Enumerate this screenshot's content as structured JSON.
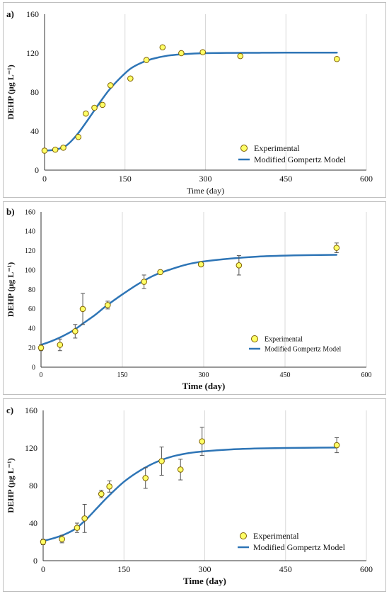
{
  "colors": {
    "curve": "#2e75b6",
    "marker_fill": "#ffff66",
    "marker_stroke": "#7f6000",
    "grid": "#d9d9d9"
  },
  "chart_data": [
    {
      "type": "scatter",
      "panel_label": "a)",
      "xlabel": "Time (day)",
      "ylabel": "DEHP (μg L⁻¹)",
      "xlim": [
        0,
        600
      ],
      "ylim": [
        0,
        160
      ],
      "xticks": [
        0,
        150,
        300,
        450,
        600
      ],
      "yticks": [
        0,
        40,
        80,
        120,
        160
      ],
      "grid": "vertical",
      "legend_position": "bottom-right",
      "legend": [
        "Experimental",
        "Modified Gompertz Model"
      ],
      "experimental": {
        "x": [
          0,
          20,
          35,
          63,
          77,
          93,
          108,
          123,
          160,
          190,
          220,
          255,
          295,
          365,
          545
        ],
        "y": [
          20,
          21,
          23,
          34,
          58,
          64,
          67,
          87,
          94,
          113,
          126,
          120,
          121,
          117,
          114
        ],
        "error": null
      },
      "model": {
        "x": [
          0,
          20,
          40,
          60,
          80,
          100,
          120,
          140,
          160,
          180,
          200,
          230,
          260,
          300,
          350,
          400,
          450,
          500,
          545
        ],
        "y": [
          20,
          21,
          25,
          36,
          51,
          67,
          82,
          94,
          104,
          110,
          114,
          117.5,
          119,
          120,
          120.3,
          120.4,
          120.5,
          120.5,
          120.5
        ]
      }
    },
    {
      "type": "scatter",
      "panel_label": "b)",
      "xlabel": "Time (day)",
      "ylabel": "DEHP (μg L⁻¹)",
      "xlim": [
        0,
        600
      ],
      "ylim": [
        0,
        160
      ],
      "xticks": [
        0,
        150,
        300,
        450,
        600
      ],
      "yticks": [
        0,
        20,
        40,
        60,
        80,
        100,
        120,
        140,
        160
      ],
      "grid": "vertical",
      "legend_position": "bottom-right",
      "legend": [
        "Experimental",
        "Modified Gompertz Model"
      ],
      "experimental": {
        "x": [
          0,
          35,
          63,
          77,
          123,
          190,
          220,
          295,
          365,
          545
        ],
        "y": [
          20,
          23,
          37,
          60,
          64,
          88,
          98,
          106,
          105,
          123
        ],
        "error": [
          3,
          6,
          7,
          16,
          4,
          7,
          2,
          2,
          10,
          5
        ]
      },
      "model": {
        "x": [
          0,
          20,
          40,
          60,
          80,
          100,
          120,
          150,
          180,
          210,
          240,
          270,
          300,
          350,
          400,
          450,
          500,
          545
        ],
        "y": [
          23,
          27,
          32,
          38,
          46,
          54,
          63,
          75,
          86,
          95,
          101,
          106,
          109,
          112,
          114,
          115,
          115.5,
          115.8
        ]
      }
    },
    {
      "type": "scatter",
      "panel_label": "c)",
      "xlabel": "Time (day)",
      "ylabel": "DEHP (μg L⁻¹)",
      "xlim": [
        0,
        600
      ],
      "ylim": [
        0,
        160
      ],
      "xticks": [
        0,
        150,
        300,
        450,
        600
      ],
      "yticks": [
        0,
        40,
        80,
        120,
        160
      ],
      "grid": "vertical",
      "legend_position": "bottom-right",
      "legend": [
        "Experimental",
        "Modified Gompertz Model"
      ],
      "experimental": {
        "x": [
          0,
          35,
          63,
          77,
          108,
          123,
          190,
          220,
          255,
          295,
          545
        ],
        "y": [
          20,
          23,
          35,
          45,
          71,
          79,
          88,
          106,
          97,
          127,
          123
        ],
        "error": [
          3,
          4,
          5,
          15,
          4,
          6,
          11,
          15,
          11,
          15,
          8
        ]
      },
      "model": {
        "x": [
          0,
          20,
          40,
          60,
          80,
          100,
          120,
          150,
          180,
          210,
          240,
          270,
          300,
          350,
          400,
          450,
          500,
          545
        ],
        "y": [
          21,
          24,
          28,
          34,
          44,
          56,
          68,
          84,
          96,
          105,
          111,
          114.5,
          116.5,
          118.5,
          119.5,
          120,
          120.3,
          120.5
        ]
      }
    }
  ]
}
